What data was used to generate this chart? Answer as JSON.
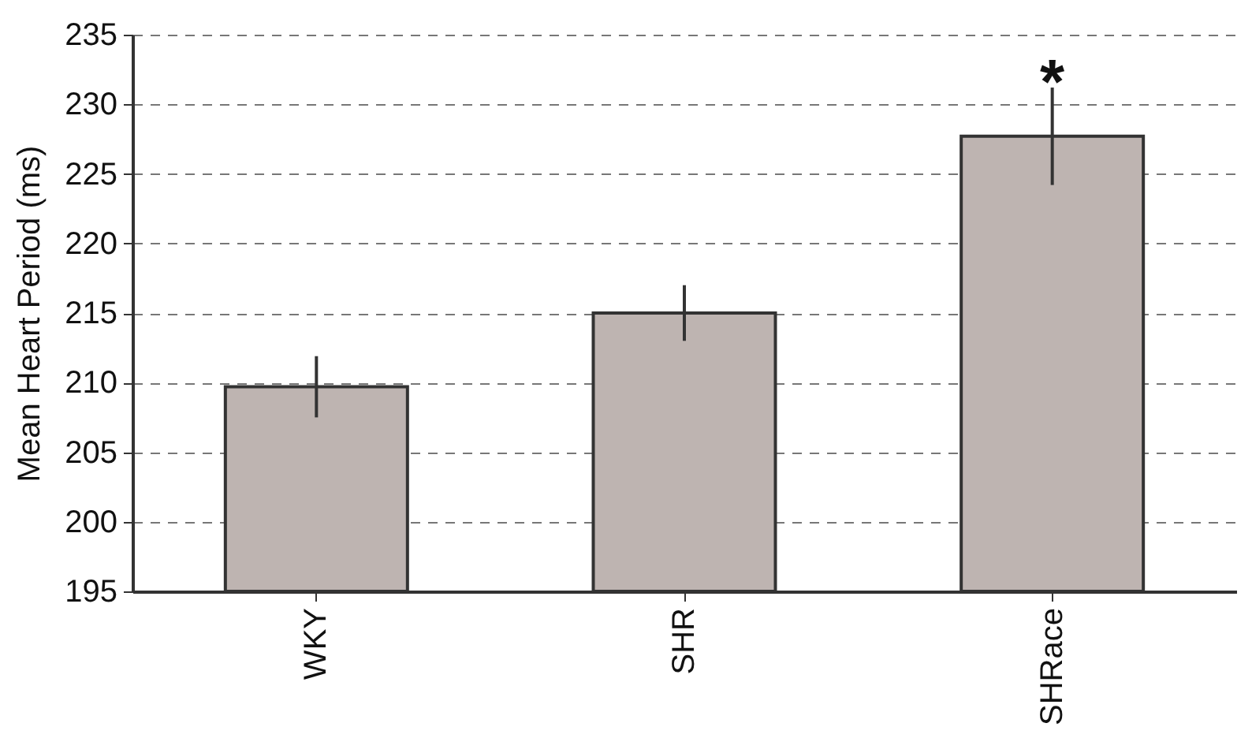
{
  "chart_data": {
    "type": "bar",
    "ylabel": "Mean Heart Period (ms)",
    "categories": [
      "WKY",
      "SHR",
      "SHRace"
    ],
    "values": [
      209.7,
      215.0,
      227.7
    ],
    "errors": [
      2.2,
      2.0,
      3.5
    ],
    "color": "#beb4b1",
    "ylim": [
      195,
      235
    ],
    "yticks": [
      195,
      200,
      205,
      210,
      215,
      220,
      225,
      230,
      235
    ],
    "grid": "y",
    "annotations": [
      "*"
    ]
  }
}
